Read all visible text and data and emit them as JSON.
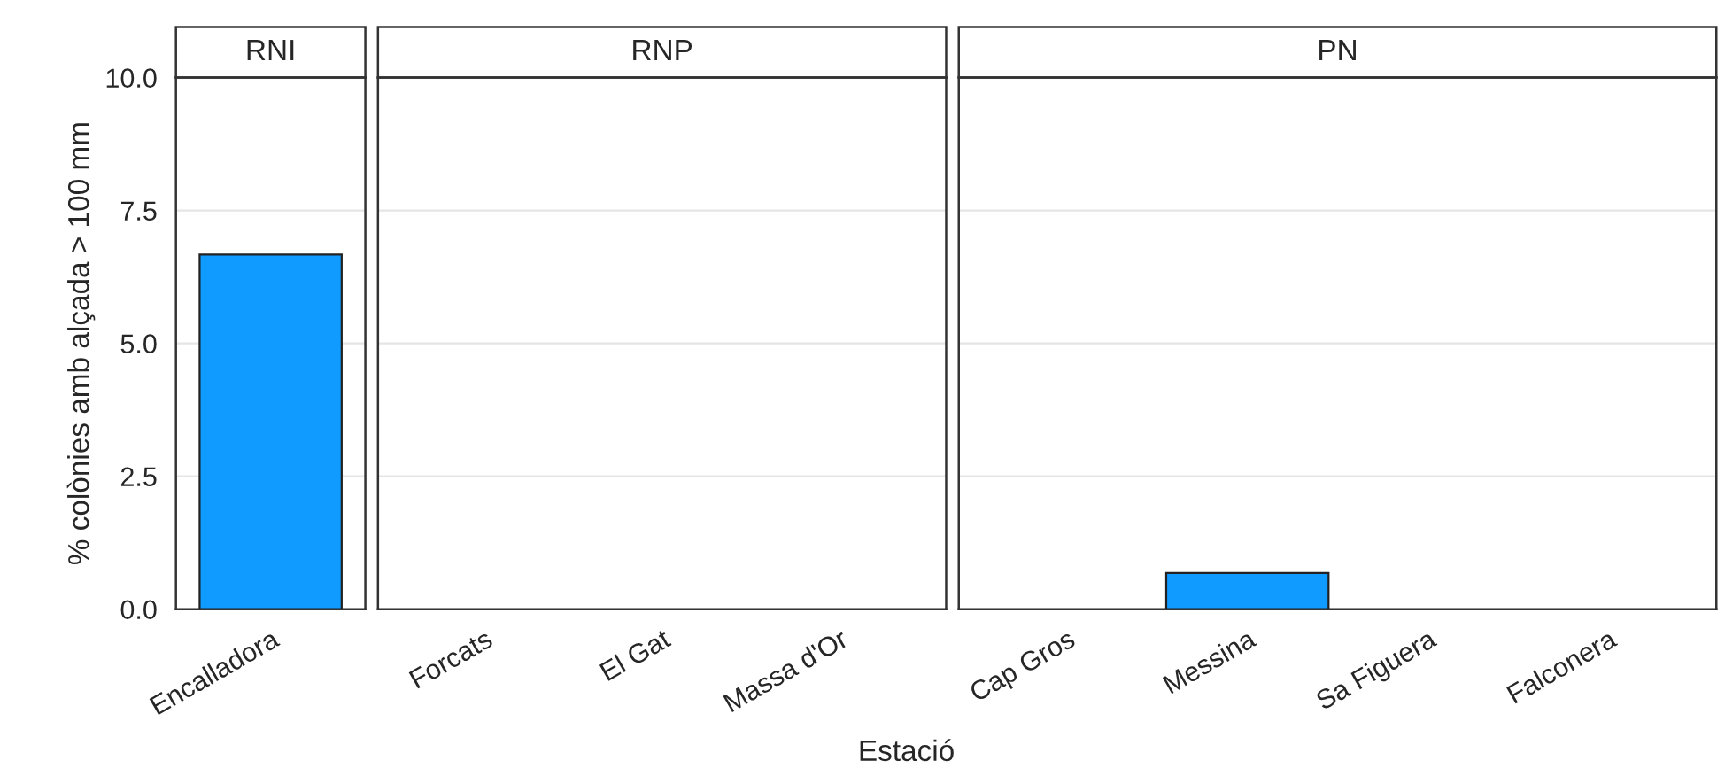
{
  "chart_data": [
    {
      "type": "bar",
      "title": "RNI",
      "ylabel": "% colònies amb alçada > 100 mm",
      "categories": [
        "Encalladora"
      ],
      "values": [
        6.67
      ],
      "color": "#0f9bff",
      "ylim": [
        0,
        10
      ],
      "yticks": [
        {
          "value": 0,
          "label": "0.0"
        },
        {
          "value": 2.5,
          "label": "2.5"
        },
        {
          "value": 5,
          "label": "5.0"
        },
        {
          "value": 7.5,
          "label": "7.5"
        },
        {
          "value": 10,
          "label": "10.0"
        }
      ],
      "grid": "y"
    },
    {
      "type": "bar",
      "title": "RNP",
      "xlabel": "Estació",
      "categories": [
        "Forcats",
        "El Gat",
        "Massa d'Or"
      ],
      "values": [
        0,
        0,
        0
      ],
      "color": "#0f9bff",
      "ylim": [
        0,
        10
      ],
      "yticks": [
        0,
        2.5,
        5,
        7.5,
        10
      ],
      "grid": "y",
      "tick_labels": "x"
    },
    {
      "type": "bar",
      "title": "PN",
      "categories": [
        "Cap Gros",
        "Messina",
        "Sa Figuera",
        "Falconera"
      ],
      "values": [
        0,
        0.68,
        0,
        0
      ],
      "color": "#0f9bff",
      "ylim": [
        0,
        10
      ],
      "yticks": [
        0,
        2.5,
        5,
        7.5,
        10
      ],
      "grid": "y",
      "tick_labels": "x"
    }
  ]
}
